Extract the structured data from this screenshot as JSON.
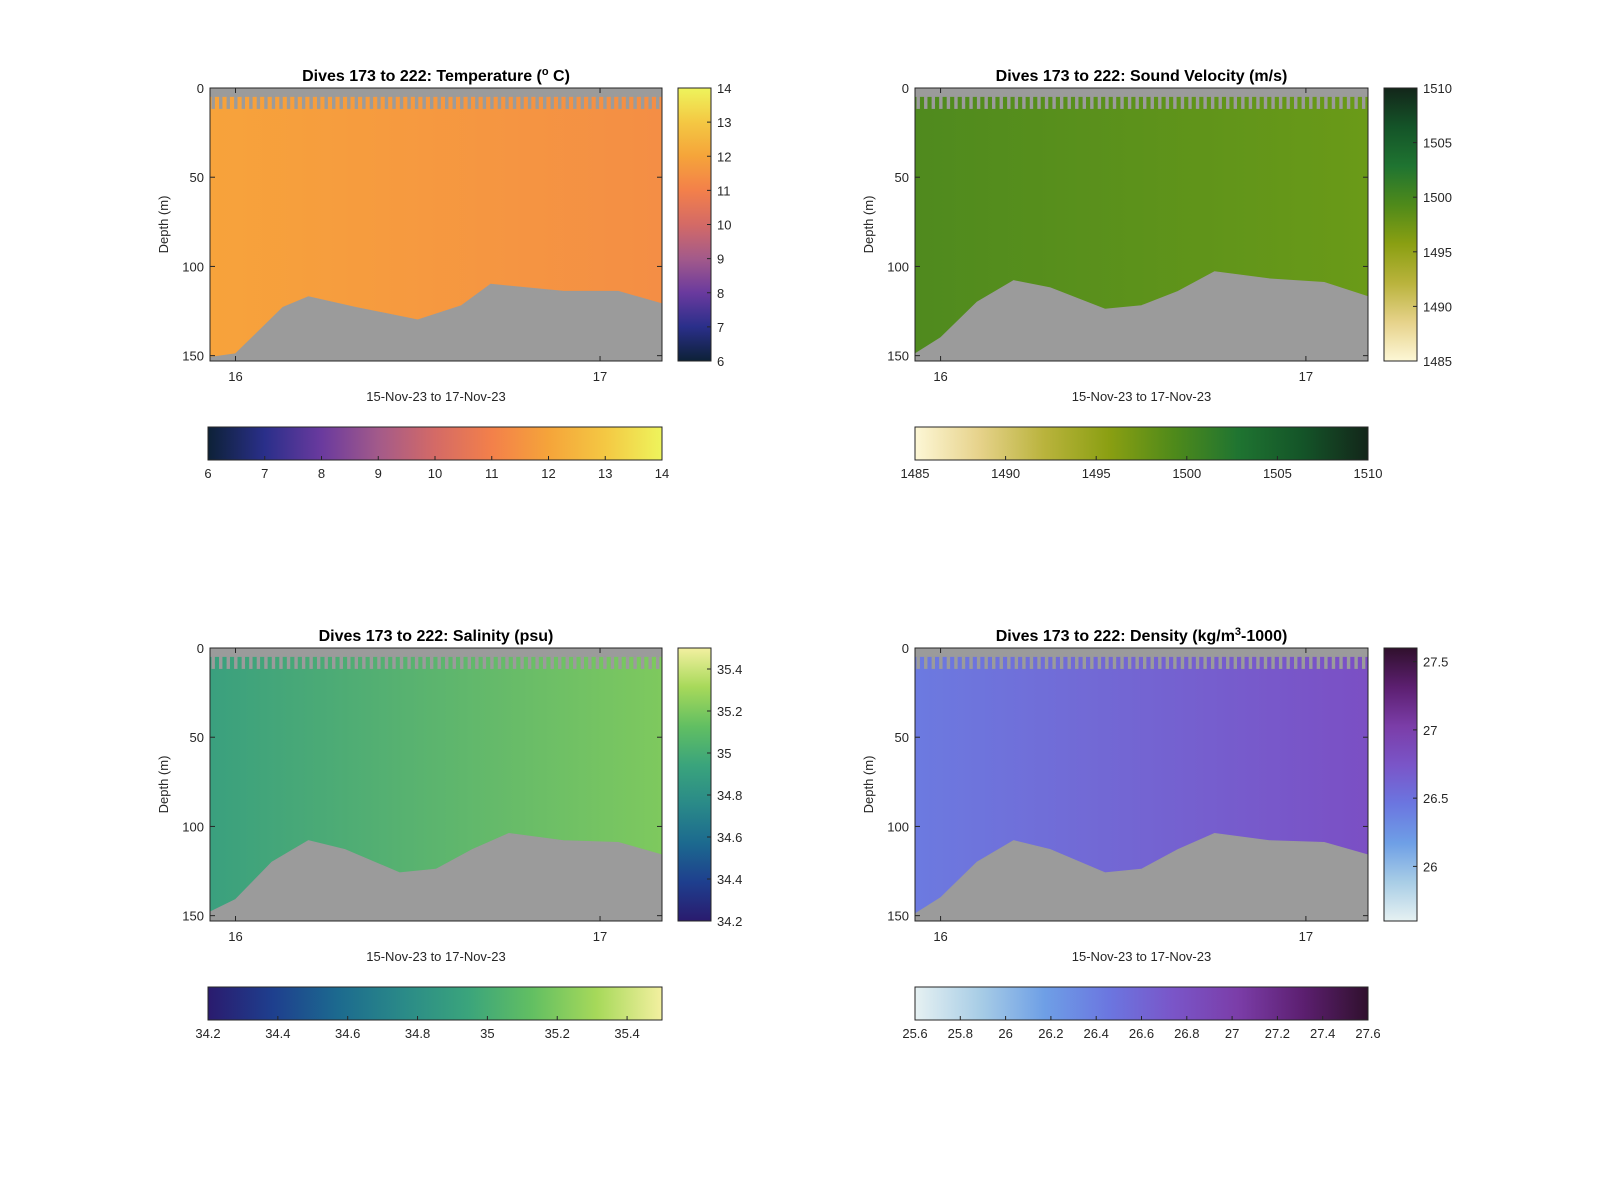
{
  "chart_data": [
    {
      "type": "heatmap",
      "title": "Dives 173 to 222: Temperature (° C)",
      "title_parts": [
        "Dives 173 to 222: Temperature (",
        "o",
        " C)"
      ],
      "xlabel": "15-Nov-23 to 17-Nov-23",
      "ylabel": "Depth (m)",
      "xlim": [
        15.93,
        17.17
      ],
      "ylim": [
        0,
        153
      ],
      "y_reversed": true,
      "x_ticks": [
        "16",
        "17"
      ],
      "x_tick_values": [
        16,
        17
      ],
      "y_ticks": [
        "0",
        "50",
        "100",
        "150"
      ],
      "y_tick_values": [
        0,
        50,
        100,
        150
      ],
      "colormap": [
        "#0d2137",
        "#2a2f8a",
        "#6a3a9e",
        "#a35a8a",
        "#d46a66",
        "#f3804a",
        "#f5a43a",
        "#f4c843",
        "#eef45c"
      ],
      "clim": [
        6,
        14
      ],
      "vertical_colorbar_ticks": [
        "6",
        "7",
        "8",
        "9",
        "10",
        "11",
        "12",
        "13",
        "14"
      ],
      "horizontal_colorbar_ticks": [
        "6",
        "7",
        "8",
        "9",
        "10",
        "11",
        "12",
        "13",
        "14"
      ],
      "colorbar_tick_values": [
        6,
        7,
        8,
        9,
        10,
        11,
        12,
        13,
        14
      ],
      "fill_left": "#f7a33b",
      "fill_right": "#f48e45",
      "seafloor_depth_profile": [
        {
          "day": 15.93,
          "depth": 151
        },
        {
          "day": 16.0,
          "depth": 149
        },
        {
          "day": 16.06,
          "depth": 137
        },
        {
          "day": 16.13,
          "depth": 123
        },
        {
          "day": 16.2,
          "depth": 117
        },
        {
          "day": 16.33,
          "depth": 123
        },
        {
          "day": 16.5,
          "depth": 130
        },
        {
          "day": 16.62,
          "depth": 122
        },
        {
          "day": 16.7,
          "depth": 110
        },
        {
          "day": 16.9,
          "depth": 114
        },
        {
          "day": 17.05,
          "depth": 114
        },
        {
          "day": 17.17,
          "depth": 121
        }
      ]
    },
    {
      "type": "heatmap",
      "title": "Dives 173 to 222: Sound Velocity (m/s)",
      "title_parts": [
        "Dives 173 to 222: Sound Velocity (m/s)"
      ],
      "xlabel": "15-Nov-23 to 17-Nov-23",
      "ylabel": "Depth (m)",
      "xlim": [
        15.93,
        17.17
      ],
      "ylim": [
        0,
        153
      ],
      "y_reversed": true,
      "x_ticks": [
        "16",
        "17"
      ],
      "x_tick_values": [
        16,
        17
      ],
      "y_ticks": [
        "0",
        "50",
        "100",
        "150"
      ],
      "y_tick_values": [
        0,
        50,
        100,
        150
      ],
      "colormap": [
        "#fdf7d6",
        "#e6d28a",
        "#b9b33c",
        "#8a9f12",
        "#4f8a1a",
        "#1f7431",
        "#145428",
        "#13261a"
      ],
      "clim": [
        1485,
        1510
      ],
      "vertical_colorbar_ticks": [
        "1485",
        "1490",
        "1495",
        "1500",
        "1505",
        "1510"
      ],
      "horizontal_colorbar_ticks": [
        "1485",
        "1490",
        "1495",
        "1500",
        "1505",
        "1510"
      ],
      "colorbar_tick_values": [
        1485,
        1490,
        1495,
        1500,
        1505,
        1510
      ],
      "fill_left": "#4f8a1e",
      "fill_right": "#6a9a18",
      "seafloor_depth_profile": [
        {
          "day": 15.93,
          "depth": 149
        },
        {
          "day": 16.0,
          "depth": 140
        },
        {
          "day": 16.1,
          "depth": 120
        },
        {
          "day": 16.2,
          "depth": 108
        },
        {
          "day": 16.3,
          "depth": 112
        },
        {
          "day": 16.45,
          "depth": 124
        },
        {
          "day": 16.55,
          "depth": 122
        },
        {
          "day": 16.65,
          "depth": 114
        },
        {
          "day": 16.75,
          "depth": 103
        },
        {
          "day": 16.9,
          "depth": 107
        },
        {
          "day": 17.05,
          "depth": 109
        },
        {
          "day": 17.17,
          "depth": 117
        }
      ]
    },
    {
      "type": "heatmap",
      "title": "Dives 173 to 222: Salinity (psu)",
      "title_parts": [
        "Dives 173 to 222: Salinity (psu)"
      ],
      "xlabel": "15-Nov-23 to 17-Nov-23",
      "ylabel": "Depth (m)",
      "xlim": [
        15.93,
        17.17
      ],
      "ylim": [
        0,
        153
      ],
      "y_reversed": true,
      "x_ticks": [
        "16",
        "17"
      ],
      "x_tick_values": [
        16,
        17
      ],
      "y_ticks": [
        "0",
        "50",
        "100",
        "150"
      ],
      "y_tick_values": [
        0,
        50,
        100,
        150
      ],
      "colormap": [
        "#2a1b6e",
        "#1e3f8e",
        "#1c6a8f",
        "#2a8a88",
        "#3aa47c",
        "#62bf62",
        "#a7d95a",
        "#f3f0a0"
      ],
      "clim": [
        34.2,
        35.5
      ],
      "vertical_colorbar_ticks": [
        "34.2",
        "34.4",
        "34.6",
        "34.8",
        "35",
        "35.2",
        "35.4"
      ],
      "horizontal_colorbar_ticks": [
        "34.2",
        "34.4",
        "34.6",
        "34.8",
        "35",
        "35.2",
        "35.4"
      ],
      "colorbar_tick_values": [
        34.2,
        34.4,
        34.6,
        34.8,
        35.0,
        35.2,
        35.4
      ],
      "fill_left": "#3aa07e",
      "fill_right": "#7ec95e",
      "seafloor_depth_profile": [
        {
          "day": 15.93,
          "depth": 148
        },
        {
          "day": 16.0,
          "depth": 141
        },
        {
          "day": 16.1,
          "depth": 120
        },
        {
          "day": 16.2,
          "depth": 108
        },
        {
          "day": 16.3,
          "depth": 113
        },
        {
          "day": 16.45,
          "depth": 126
        },
        {
          "day": 16.55,
          "depth": 124
        },
        {
          "day": 16.65,
          "depth": 113
        },
        {
          "day": 16.75,
          "depth": 104
        },
        {
          "day": 16.9,
          "depth": 108
        },
        {
          "day": 17.05,
          "depth": 109
        },
        {
          "day": 17.17,
          "depth": 116
        }
      ]
    },
    {
      "type": "heatmap",
      "title": "Dives 173 to 222: Density (kg/m³-1000)",
      "title_parts": [
        "Dives 173 to 222: Density (kg/m",
        "3",
        "-1000)"
      ],
      "xlabel": "15-Nov-23 to 17-Nov-23",
      "ylabel": "Depth (m)",
      "xlim": [
        15.93,
        17.17
      ],
      "ylim": [
        0,
        153
      ],
      "y_reversed": true,
      "x_ticks": [
        "16",
        "17"
      ],
      "x_tick_values": [
        16,
        17
      ],
      "y_ticks": [
        "0",
        "50",
        "100",
        "150"
      ],
      "y_tick_values": [
        0,
        50,
        100,
        150
      ],
      "colormap": [
        "#e6f1f2",
        "#a8cde6",
        "#6e9fe6",
        "#6b76e0",
        "#7a55c8",
        "#7b3da8",
        "#5c1f70",
        "#30102d"
      ],
      "clim": [
        25.6,
        27.6
      ],
      "vertical_colorbar_ticks": [
        "26",
        "26.5",
        "27",
        "27.5"
      ],
      "vertical_colorbar_tick_values": [
        26,
        26.5,
        27,
        27.5
      ],
      "horizontal_colorbar_ticks": [
        "25.6",
        "25.8",
        "26",
        "26.2",
        "26.4",
        "26.6",
        "26.8",
        "27",
        "27.2",
        "27.4",
        "27.6"
      ],
      "colorbar_tick_values": [
        25.6,
        25.8,
        26.0,
        26.2,
        26.4,
        26.6,
        26.8,
        27.0,
        27.2,
        27.4,
        27.6
      ],
      "fill_left": "#6c7ae0",
      "fill_right": "#7b4fc4",
      "seafloor_depth_profile": [
        {
          "day": 15.93,
          "depth": 149
        },
        {
          "day": 16.0,
          "depth": 140
        },
        {
          "day": 16.1,
          "depth": 120
        },
        {
          "day": 16.2,
          "depth": 108
        },
        {
          "day": 16.3,
          "depth": 113
        },
        {
          "day": 16.45,
          "depth": 126
        },
        {
          "day": 16.55,
          "depth": 124
        },
        {
          "day": 16.65,
          "depth": 113
        },
        {
          "day": 16.75,
          "depth": 104
        },
        {
          "day": 16.9,
          "depth": 108
        },
        {
          "day": 17.05,
          "depth": 109
        },
        {
          "day": 17.17,
          "depth": 116
        }
      ]
    }
  ],
  "colors": {
    "no_data": "#9b9b9b",
    "axis": "#262626"
  }
}
